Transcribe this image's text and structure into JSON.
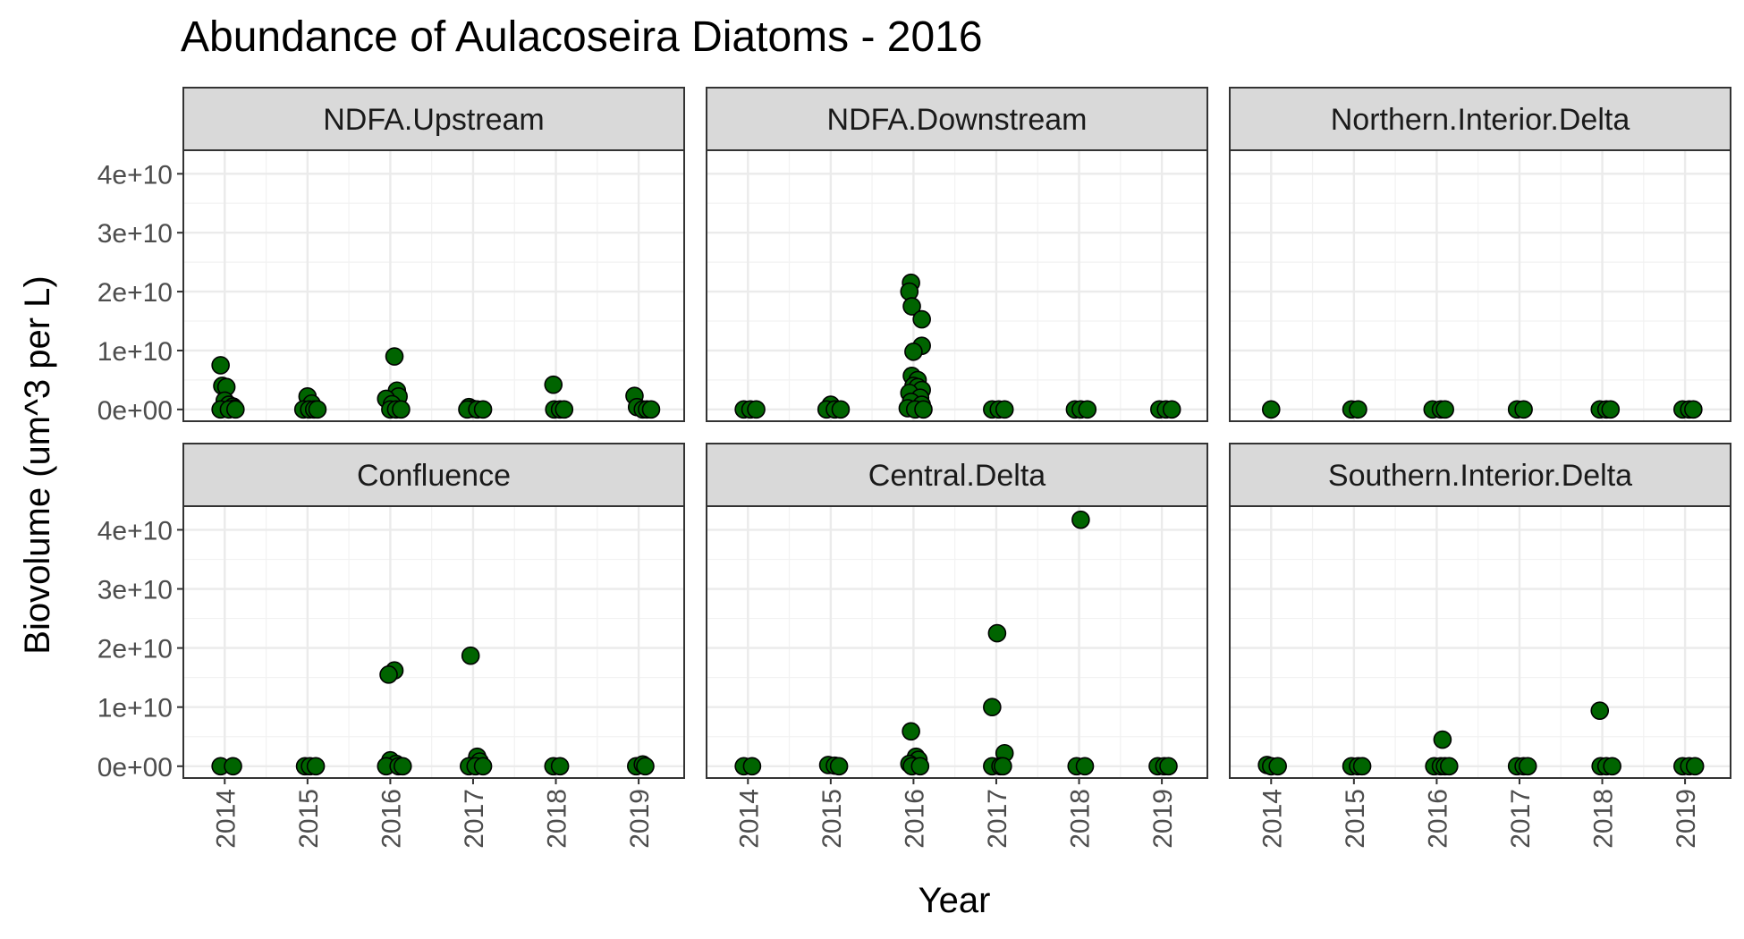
{
  "chart_data": {
    "type": "scatter",
    "title": "Abundance of Aulacoseira Diatoms - 2016",
    "xlabel": "Year",
    "ylabel": "Biovolume (um^3 per L)",
    "x_ticks": [
      2014,
      2015,
      2016,
      2017,
      2018,
      2019
    ],
    "x_tick_labels": [
      "2014",
      "2015",
      "2016",
      "2017",
      "2018",
      "2019"
    ],
    "y_ticks": [
      0,
      10000000000,
      20000000000,
      30000000000,
      40000000000
    ],
    "y_tick_labels": [
      "0e+00",
      "1e+10",
      "2e+10",
      "3e+10",
      "4e+10"
    ],
    "xlim": [
      2013.5,
      2019.55
    ],
    "ylim": [
      -2000000000,
      44000000000
    ],
    "grid": true,
    "point_color": "#006400",
    "point_outline": "#000000",
    "strip_fill": "#d9d9d9",
    "panels": [
      {
        "name": "NDFA.Upstream",
        "points": [
          [
            2013.95,
            7500000000
          ],
          [
            2013.97,
            4000000000
          ],
          [
            2014.02,
            3800000000
          ],
          [
            2014.0,
            1500000000
          ],
          [
            2014.05,
            800000000
          ],
          [
            2014.1,
            500000000
          ],
          [
            2014.12,
            200000000
          ],
          [
            2013.95,
            0
          ],
          [
            2014.05,
            0
          ],
          [
            2014.13,
            0
          ],
          [
            2015.0,
            2200000000
          ],
          [
            2015.05,
            1000000000
          ],
          [
            2014.95,
            0
          ],
          [
            2015.02,
            0
          ],
          [
            2015.08,
            0
          ],
          [
            2015.12,
            0
          ],
          [
            2016.05,
            9000000000
          ],
          [
            2016.08,
            3200000000
          ],
          [
            2016.1,
            2200000000
          ],
          [
            2015.95,
            1800000000
          ],
          [
            2016.02,
            900000000
          ],
          [
            2016.0,
            0
          ],
          [
            2016.07,
            0
          ],
          [
            2016.13,
            0
          ],
          [
            2016.95,
            400000000
          ],
          [
            2017.0,
            100000000
          ],
          [
            2016.93,
            0
          ],
          [
            2017.05,
            0
          ],
          [
            2017.12,
            0
          ],
          [
            2017.97,
            4200000000
          ],
          [
            2017.98,
            0
          ],
          [
            2018.05,
            0
          ],
          [
            2018.1,
            0
          ],
          [
            2018.95,
            2300000000
          ],
          [
            2018.98,
            400000000
          ],
          [
            2019.05,
            0
          ],
          [
            2019.1,
            0
          ],
          [
            2019.15,
            0
          ]
        ]
      },
      {
        "name": "NDFA.Downstream",
        "points": [
          [
            2013.95,
            0
          ],
          [
            2014.03,
            0
          ],
          [
            2014.1,
            0
          ],
          [
            2015.0,
            800000000
          ],
          [
            2014.95,
            0
          ],
          [
            2015.05,
            0
          ],
          [
            2015.12,
            0
          ],
          [
            2015.97,
            21500000000
          ],
          [
            2015.95,
            20000000000
          ],
          [
            2015.98,
            17500000000
          ],
          [
            2016.1,
            15300000000
          ],
          [
            2016.1,
            10800000000
          ],
          [
            2016.0,
            9800000000
          ],
          [
            2015.98,
            5700000000
          ],
          [
            2016.05,
            5000000000
          ],
          [
            2016.0,
            4000000000
          ],
          [
            2016.05,
            3800000000
          ],
          [
            2016.1,
            3300000000
          ],
          [
            2015.95,
            2800000000
          ],
          [
            2016.08,
            2000000000
          ],
          [
            2015.97,
            1300000000
          ],
          [
            2016.1,
            800000000
          ],
          [
            2015.93,
            200000000
          ],
          [
            2016.02,
            0
          ],
          [
            2016.12,
            0
          ],
          [
            2016.95,
            0
          ],
          [
            2017.03,
            0
          ],
          [
            2017.1,
            0
          ],
          [
            2017.95,
            0
          ],
          [
            2018.02,
            0
          ],
          [
            2018.1,
            0
          ],
          [
            2018.97,
            0
          ],
          [
            2019.05,
            0
          ],
          [
            2019.12,
            0
          ]
        ]
      },
      {
        "name": "Northern.Interior.Delta",
        "points": [
          [
            2014.0,
            0
          ],
          [
            2014.97,
            0
          ],
          [
            2015.05,
            0
          ],
          [
            2015.95,
            0
          ],
          [
            2016.05,
            0
          ],
          [
            2016.1,
            0
          ],
          [
            2016.97,
            0
          ],
          [
            2017.05,
            0
          ],
          [
            2017.97,
            0
          ],
          [
            2018.05,
            0
          ],
          [
            2018.1,
            0
          ],
          [
            2018.97,
            0
          ],
          [
            2019.05,
            0
          ],
          [
            2019.1,
            0
          ]
        ]
      },
      {
        "name": "Confluence",
        "points": [
          [
            2013.95,
            0
          ],
          [
            2014.1,
            0
          ],
          [
            2014.97,
            0
          ],
          [
            2015.03,
            0
          ],
          [
            2015.1,
            0
          ],
          [
            2016.05,
            16200000000
          ],
          [
            2015.98,
            15500000000
          ],
          [
            2016.0,
            1000000000
          ],
          [
            2016.07,
            400000000
          ],
          [
            2015.95,
            0
          ],
          [
            2016.1,
            0
          ],
          [
            2016.15,
            0
          ],
          [
            2016.97,
            18700000000
          ],
          [
            2017.05,
            1600000000
          ],
          [
            2017.08,
            800000000
          ],
          [
            2016.95,
            0
          ],
          [
            2017.03,
            0
          ],
          [
            2017.12,
            0
          ],
          [
            2017.97,
            0
          ],
          [
            2018.05,
            0
          ],
          [
            2018.97,
            0
          ],
          [
            2019.05,
            300000000
          ],
          [
            2019.08,
            0
          ]
        ]
      },
      {
        "name": "Central.Delta",
        "points": [
          [
            2013.95,
            0
          ],
          [
            2014.05,
            0
          ],
          [
            2014.97,
            200000000
          ],
          [
            2015.05,
            100000000
          ],
          [
            2015.1,
            0
          ],
          [
            2015.97,
            5900000000
          ],
          [
            2016.03,
            1600000000
          ],
          [
            2016.06,
            1100000000
          ],
          [
            2015.95,
            400000000
          ],
          [
            2015.98,
            0
          ],
          [
            2016.08,
            0
          ],
          [
            2017.01,
            22500000000
          ],
          [
            2016.95,
            10000000000
          ],
          [
            2017.1,
            2200000000
          ],
          [
            2016.95,
            0
          ],
          [
            2017.05,
            0
          ],
          [
            2017.08,
            0
          ],
          [
            2018.02,
            41700000000
          ],
          [
            2017.97,
            0
          ],
          [
            2018.07,
            0
          ],
          [
            2018.95,
            0
          ],
          [
            2019.03,
            0
          ],
          [
            2019.08,
            0
          ]
        ]
      },
      {
        "name": "Southern.Interior.Delta",
        "points": [
          [
            2013.95,
            200000000
          ],
          [
            2014.0,
            0
          ],
          [
            2014.08,
            0
          ],
          [
            2014.97,
            0
          ],
          [
            2015.05,
            0
          ],
          [
            2015.1,
            0
          ],
          [
            2016.07,
            4500000000
          ],
          [
            2015.97,
            0
          ],
          [
            2016.05,
            0
          ],
          [
            2016.1,
            0
          ],
          [
            2016.15,
            0
          ],
          [
            2016.97,
            0
          ],
          [
            2017.05,
            0
          ],
          [
            2017.1,
            0
          ],
          [
            2017.97,
            9400000000
          ],
          [
            2017.98,
            0
          ],
          [
            2018.05,
            0
          ],
          [
            2018.12,
            0
          ],
          [
            2018.97,
            0
          ],
          [
            2019.05,
            0
          ],
          [
            2019.12,
            0
          ]
        ]
      }
    ]
  }
}
